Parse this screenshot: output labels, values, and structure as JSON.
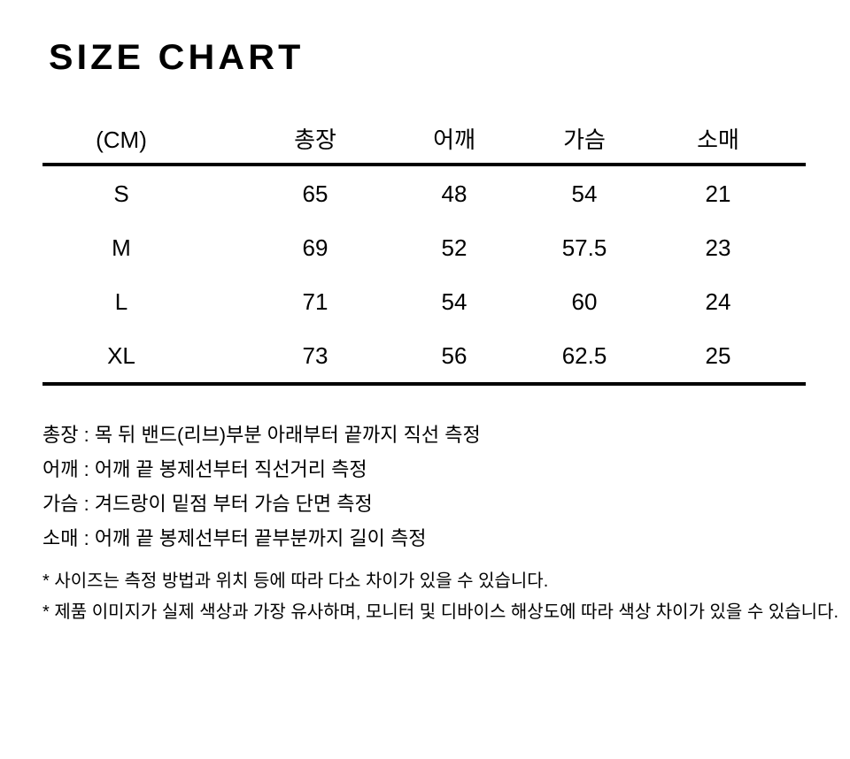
{
  "title": "SIZE CHART",
  "table": {
    "headers": [
      "(CM)",
      "총장",
      "어깨",
      "가슴",
      "소매"
    ],
    "rows": [
      [
        "S",
        "65",
        "48",
        "54",
        "21"
      ],
      [
        "M",
        "69",
        "52",
        "57.5",
        "23"
      ],
      [
        "L",
        "71",
        "54",
        "60",
        "24"
      ],
      [
        "XL",
        "73",
        "56",
        "62.5",
        "25"
      ]
    ]
  },
  "guide": {
    "lines": [
      "총장 : 목 뒤 밴드(리브)부분 아래부터 끝까지 직선 측정",
      "어깨 : 어깨 끝 봉제선부터 직선거리 측정",
      "가슴 : 겨드랑이 밑점 부터 가슴 단면 측정",
      "소매 : 어깨 끝 봉제선부터 끝부분까지 길이 측정"
    ]
  },
  "footnotes": [
    "* 사이즈는 측정 방법과 위치 등에 따라 다소 차이가 있을 수 있습니다.",
    "* 제품 이미지가 실제 색상과 가장 유사하며, 모니터 및 디바이스 해상도에 따라 색상 차이가 있을 수 있습니다."
  ],
  "colors": {
    "text": "#000000",
    "background": "#ffffff",
    "rule": "#000000"
  }
}
